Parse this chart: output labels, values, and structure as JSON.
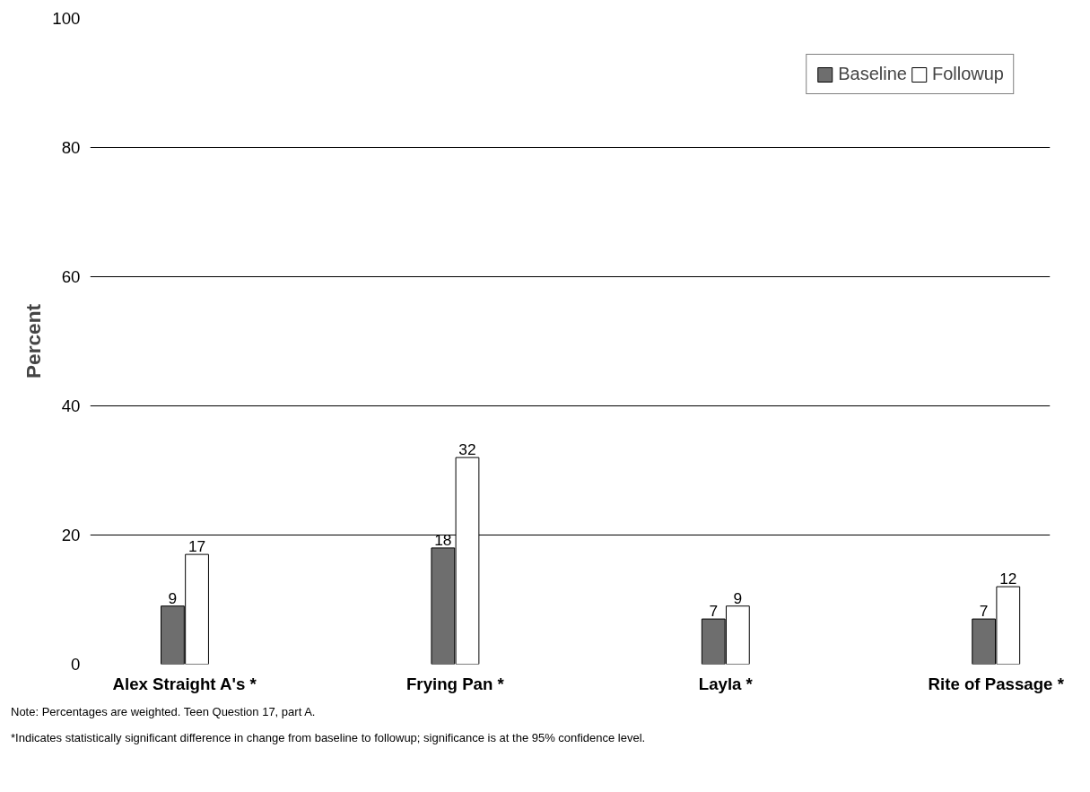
{
  "chart_data": {
    "type": "bar",
    "ylabel": "Percent",
    "categories": [
      "Alex Straight A's *",
      "Frying Pan *",
      "Layla *",
      "Rite of Passage *"
    ],
    "series": [
      {
        "name": "Baseline",
        "color": "#6e6e6e",
        "values": [
          9,
          18,
          7,
          7
        ]
      },
      {
        "name": "Followup",
        "color": "#ffffff",
        "values": [
          17,
          32,
          9,
          12
        ]
      }
    ],
    "ylim": [
      0,
      100
    ],
    "yticks": [
      0,
      20,
      40,
      60,
      80,
      100
    ],
    "grid": "y",
    "legend": "top right",
    "data_labels": true,
    "annotations": [
      "Note: Percentages are weighted. Teen Question 17, part A.",
      "*Indicates statistically significant difference in change from baseline to followup; significance is at the 95% confidence level."
    ]
  }
}
